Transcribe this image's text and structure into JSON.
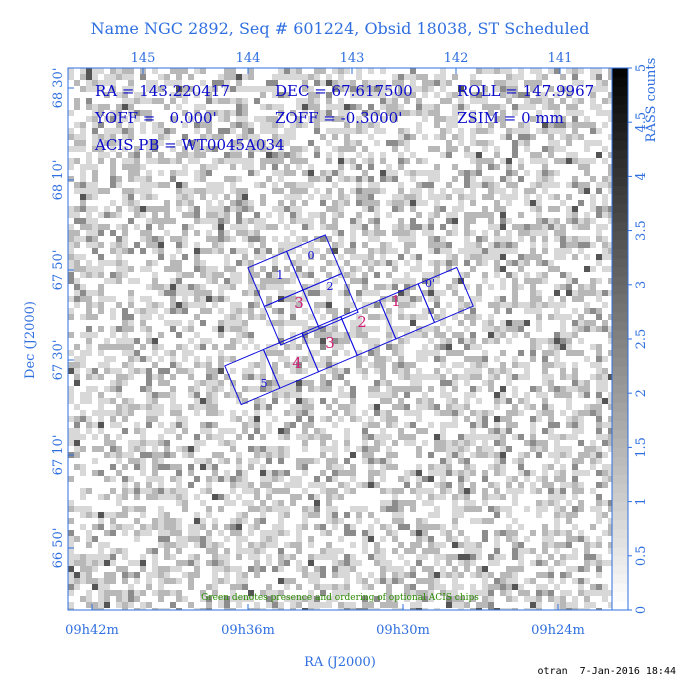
{
  "title": "Name NGC 2892, Seq # 601224, Obsid 18038, ST Scheduled",
  "top_axis": {
    "ticks": [
      "145",
      "144",
      "143",
      "142",
      "141"
    ]
  },
  "left_axis": {
    "label": "Dec (J2000)",
    "ticks": [
      "68 30'",
      "68 10'",
      "67 50'",
      "67 30'",
      "67 10'",
      "66 50'"
    ]
  },
  "bottom_axis": {
    "label": "RA (J2000)",
    "ticks": [
      "09h42m",
      "09h36m",
      "09h30m",
      "09h24m"
    ]
  },
  "colorbar": {
    "label": "RASS counts",
    "ticks": [
      "0",
      "0.5",
      "1",
      "1.5",
      "2",
      "2.5",
      "3",
      "3.5",
      "4",
      "4.5",
      "5"
    ]
  },
  "info": [
    "RA = 143.220417",
    "DEC = 67.617500",
    "ROLL = 147.9967",
    "YOFF =   0.000'",
    "ZOFF = -0.3000'",
    "ZSIM = 0 mm",
    "ACIS PB = WT0045A034"
  ],
  "i_chips": [
    "0",
    "1",
    "2",
    "3"
  ],
  "s_chips": [
    "5",
    "4",
    "3",
    "2",
    "1",
    "0'"
  ],
  "note": "Green denotes presence and ordering of optional ACIS chips",
  "footer": "otran  7-Jan-2016 18:44"
}
